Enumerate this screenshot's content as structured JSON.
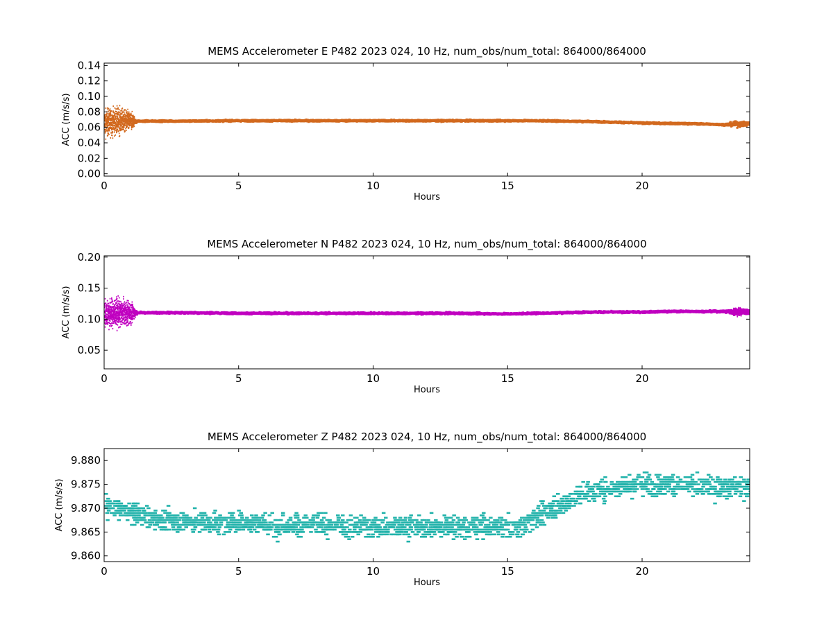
{
  "chart_data": [
    {
      "type": "scatter",
      "title": "MEMS Accelerometer E P482 2023 024, 10 Hz, num_obs/num_total: 864000/864000",
      "xlabel": "Hours",
      "ylabel": "ACC (m/s/s)",
      "xlim": [
        0,
        24
      ],
      "ylim": [
        -0.003,
        0.143
      ],
      "xticks": [
        0,
        5,
        10,
        15,
        20
      ],
      "xtick_labels": [
        "0",
        "5",
        "10",
        "15",
        "20"
      ],
      "yticks": [
        0.0,
        0.02,
        0.04,
        0.06,
        0.08,
        0.1,
        0.12,
        0.14
      ],
      "ytick_labels": [
        "0.00",
        "0.02",
        "0.04",
        "0.06",
        "0.08",
        "0.10",
        "0.12",
        "0.14"
      ],
      "grid": false,
      "color": "#d2691e",
      "series": [
        {
          "x": [
            0,
            0.5,
            1.0,
            1.2,
            3,
            5,
            7,
            9,
            11,
            13,
            15,
            16,
            17,
            18,
            19,
            20,
            21,
            22,
            23,
            23.5,
            24
          ],
          "y": [
            0.066,
            0.068,
            0.068,
            0.0685,
            0.0685,
            0.069,
            0.069,
            0.069,
            0.069,
            0.069,
            0.069,
            0.069,
            0.0685,
            0.068,
            0.067,
            0.066,
            0.0655,
            0.065,
            0.064,
            0.0645,
            0.065
          ],
          "spread": [
            0.03,
            0.03,
            0.02,
            0.0022,
            0.0022,
            0.0022,
            0.0022,
            0.0022,
            0.0022,
            0.0022,
            0.0022,
            0.0022,
            0.0022,
            0.0022,
            0.0022,
            0.0022,
            0.0022,
            0.0022,
            0.0022,
            0.007,
            0.005
          ]
        }
      ]
    },
    {
      "type": "scatter",
      "title": "MEMS Accelerometer N P482 2023 024, 10 Hz, num_obs/num_total: 864000/864000",
      "xlabel": "Hours",
      "ylabel": "ACC (m/s/s)",
      "xlim": [
        0,
        24
      ],
      "ylim": [
        0.02,
        0.202
      ],
      "xticks": [
        0,
        5,
        10,
        15,
        20
      ],
      "xtick_labels": [
        "0",
        "5",
        "10",
        "15",
        "20"
      ],
      "yticks": [
        0.05,
        0.1,
        0.15,
        0.2
      ],
      "ytick_labels": [
        "0.05",
        "0.10",
        "0.15",
        "0.20"
      ],
      "grid": false,
      "color": "#c000c0",
      "series": [
        {
          "x": [
            0,
            0.5,
            1.0,
            1.2,
            3,
            5,
            7,
            9,
            11,
            13,
            15,
            16,
            17,
            18,
            19,
            20,
            21,
            22,
            23,
            23.5,
            24
          ],
          "y": [
            0.11,
            0.11,
            0.11,
            0.111,
            0.111,
            0.11,
            0.11,
            0.11,
            0.11,
            0.11,
            0.109,
            0.11,
            0.111,
            0.112,
            0.112,
            0.112,
            0.113,
            0.113,
            0.113,
            0.112,
            0.112
          ],
          "spread": [
            0.04,
            0.04,
            0.03,
            0.003,
            0.003,
            0.003,
            0.003,
            0.003,
            0.003,
            0.003,
            0.003,
            0.003,
            0.003,
            0.003,
            0.003,
            0.003,
            0.003,
            0.003,
            0.003,
            0.012,
            0.007
          ]
        }
      ]
    },
    {
      "type": "scatter",
      "title": "MEMS Accelerometer Z P482 2023 024, 10 Hz, num_obs/num_total: 864000/864000",
      "xlabel": "Hours",
      "ylabel": "ACC (m/s/s)",
      "xlim": [
        0,
        24
      ],
      "ylim": [
        9.8588,
        9.8825
      ],
      "xticks": [
        0,
        5,
        10,
        15,
        20
      ],
      "xtick_labels": [
        "0",
        "5",
        "10",
        "15",
        "20"
      ],
      "yticks": [
        9.86,
        9.865,
        9.87,
        9.875,
        9.88
      ],
      "ytick_labels": [
        "9.860",
        "9.865",
        "9.870",
        "9.875",
        "9.880"
      ],
      "grid": false,
      "color": "#20b2aa",
      "series": [
        {
          "x": [
            0,
            1,
            2,
            3,
            4,
            5,
            6,
            7,
            8,
            9,
            10,
            11,
            12,
            13,
            14,
            15,
            15.5,
            16,
            16.5,
            17,
            17.5,
            18,
            19,
            20,
            21,
            22,
            23,
            24
          ],
          "y": [
            9.8705,
            9.869,
            9.8675,
            9.867,
            9.867,
            9.867,
            9.8665,
            9.8665,
            9.8665,
            9.866,
            9.866,
            9.866,
            9.866,
            9.866,
            9.866,
            9.866,
            9.8665,
            9.868,
            9.8695,
            9.871,
            9.8725,
            9.8735,
            9.8745,
            9.875,
            9.875,
            9.8745,
            9.8745,
            9.8745
          ],
          "spread": [
            0.0025,
            0.0025,
            0.0025,
            0.0025,
            0.0025,
            0.0025,
            0.0025,
            0.0025,
            0.0025,
            0.0025,
            0.0025,
            0.0025,
            0.0025,
            0.0025,
            0.0025,
            0.0025,
            0.0025,
            0.0025,
            0.0025,
            0.0025,
            0.0025,
            0.0025,
            0.0025,
            0.0025,
            0.0025,
            0.0025,
            0.0025,
            0.0025
          ]
        }
      ]
    }
  ]
}
